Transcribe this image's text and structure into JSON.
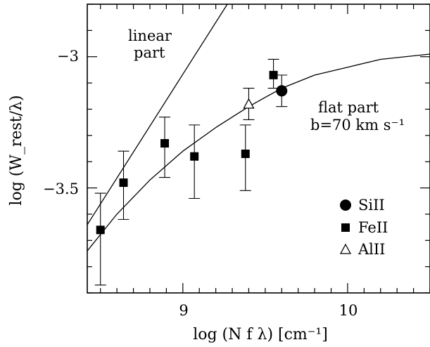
{
  "chart_data": {
    "type": "scatter",
    "xlabel": "log (N f λ) [cm⁻¹]",
    "ylabel": "log (W_rest/λ)",
    "xlim": [
      8.42,
      10.5
    ],
    "ylim": [
      -3.9,
      -2.8
    ],
    "x_ticks": [
      9,
      10
    ],
    "y_ticks": [
      -3,
      -3.5
    ],
    "x_tick_labels": [
      "9",
      "10"
    ],
    "y_tick_labels": [
      "−3",
      "−3.5"
    ],
    "grid": false,
    "legend_position": "bottom-right",
    "series": [
      {
        "name": "SiII",
        "marker": "circle-filled",
        "points": [
          {
            "x": 9.6,
            "y": -3.13,
            "yerr_low": 0.06,
            "yerr_high": 0.06
          }
        ]
      },
      {
        "name": "FeII",
        "marker": "square-filled",
        "points": [
          {
            "x": 8.5,
            "y": -3.66,
            "yerr_low": 0.21,
            "yerr_high": 0.14
          },
          {
            "x": 8.64,
            "y": -3.48,
            "yerr_low": 0.14,
            "yerr_high": 0.12
          },
          {
            "x": 8.89,
            "y": -3.33,
            "yerr_low": 0.13,
            "yerr_high": 0.1
          },
          {
            "x": 9.07,
            "y": -3.38,
            "yerr_low": 0.16,
            "yerr_high": 0.12
          },
          {
            "x": 9.38,
            "y": -3.37,
            "yerr_low": 0.14,
            "yerr_high": 0.11
          },
          {
            "x": 9.55,
            "y": -3.07,
            "yerr_low": 0.05,
            "yerr_high": 0.06
          }
        ]
      },
      {
        "name": "AlII",
        "marker": "triangle-open",
        "points": [
          {
            "x": 9.4,
            "y": -3.18,
            "yerr_low": 0.06,
            "yerr_high": 0.06
          }
        ]
      }
    ],
    "curves": [
      {
        "kind": "linear part",
        "points": [
          [
            8.42,
            -3.64
          ],
          [
            9.27,
            -2.8
          ]
        ]
      },
      {
        "kind": "curve of growth",
        "points": [
          [
            8.42,
            -3.74
          ],
          [
            8.6,
            -3.6
          ],
          [
            8.8,
            -3.47
          ],
          [
            9.0,
            -3.36
          ],
          [
            9.2,
            -3.27
          ],
          [
            9.4,
            -3.19
          ],
          [
            9.6,
            -3.12
          ],
          [
            9.8,
            -3.07
          ],
          [
            10.0,
            -3.04
          ],
          [
            10.2,
            -3.01
          ],
          [
            10.5,
            -2.99
          ]
        ]
      }
    ],
    "annotations": [
      {
        "lines": [
          "linear",
          "part"
        ],
        "x": 8.98,
        "y": -2.9
      },
      {
        "lines": [
          "flat part",
          "b=70 km s⁻¹"
        ],
        "x": 10.18,
        "y": -3.23
      }
    ]
  }
}
